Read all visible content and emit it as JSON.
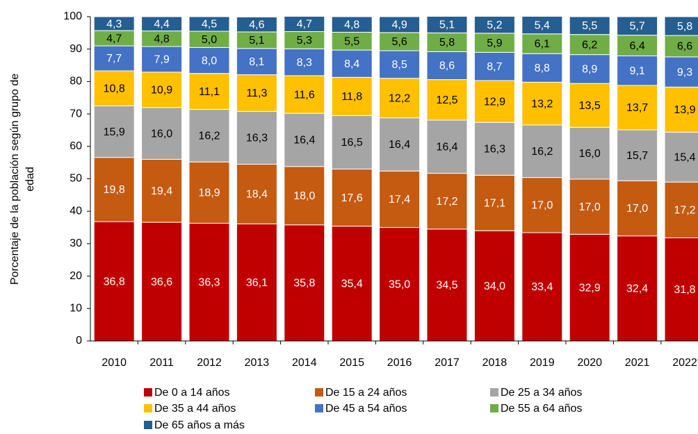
{
  "chart_data": {
    "type": "stacked_bar",
    "y_label": [
      "Porcentaje de la población según grupo de",
      "edad"
    ],
    "categories": [
      "2010",
      "2011",
      "2012",
      "2013",
      "2014",
      "2015",
      "2016",
      "2017",
      "2018",
      "2019",
      "2020",
      "2021",
      "2022"
    ],
    "ylim": [
      0,
      100
    ],
    "yticks": [
      0,
      10,
      20,
      30,
      40,
      50,
      60,
      70,
      80,
      90,
      100
    ],
    "grid": false,
    "series": [
      {
        "name": "De 0 a 14 años",
        "color": "#c00000",
        "label_color": "#ffffff",
        "values": [
          36.8,
          36.6,
          36.3,
          36.1,
          35.8,
          35.4,
          35.0,
          34.5,
          34.0,
          33.4,
          32.9,
          32.4,
          31.8
        ],
        "value_labels": [
          "36,8",
          "36,6",
          "36,3",
          "36,1",
          "35,8",
          "35,4",
          "35,0",
          "34,5",
          "34,0",
          "33,4",
          "32,9",
          "32,4",
          "31,8"
        ]
      },
      {
        "name": "De 15 a 24 años",
        "color": "#c55a11",
        "label_color": "#ffffff",
        "values": [
          19.8,
          19.4,
          18.9,
          18.4,
          18.0,
          17.6,
          17.4,
          17.2,
          17.1,
          17.0,
          17.0,
          17.0,
          17.2
        ],
        "value_labels": [
          "19,8",
          "19,4",
          "18,9",
          "18,4",
          "18,0",
          "17,6",
          "17,4",
          "17,2",
          "17,1",
          "17,0",
          "17,0",
          "17,0",
          "17,2"
        ]
      },
      {
        "name": "De 25 a 34 años",
        "color": "#a5a5a5",
        "label_color": "#000000",
        "values": [
          15.9,
          16.0,
          16.2,
          16.3,
          16.4,
          16.5,
          16.4,
          16.4,
          16.3,
          16.2,
          16.0,
          15.7,
          15.4
        ],
        "value_labels": [
          "15,9",
          "16,0",
          "16,2",
          "16,3",
          "16,4",
          "16,5",
          "16,4",
          "16,4",
          "16,3",
          "16,2",
          "16,0",
          "15,7",
          "15,4"
        ]
      },
      {
        "name": "De 35 a 44 años",
        "color": "#ffc000",
        "label_color": "#000000",
        "values": [
          10.8,
          10.9,
          11.1,
          11.3,
          11.6,
          11.8,
          12.2,
          12.5,
          12.9,
          13.2,
          13.5,
          13.7,
          13.9
        ],
        "value_labels": [
          "10,8",
          "10,9",
          "11,1",
          "11,3",
          "11,6",
          "11,8",
          "12,2",
          "12,5",
          "12,9",
          "13,2",
          "13,5",
          "13,7",
          "13,9"
        ]
      },
      {
        "name": "De 45 a 54 años",
        "color": "#4472c4",
        "label_color": "#ffffff",
        "values": [
          7.7,
          7.9,
          8.0,
          8.1,
          8.3,
          8.4,
          8.5,
          8.6,
          8.7,
          8.8,
          8.9,
          9.1,
          9.3
        ],
        "value_labels": [
          "7,7",
          "7,9",
          "8,0",
          "8,1",
          "8,3",
          "8,4",
          "8,5",
          "8,6",
          "8,7",
          "8,8",
          "8,9",
          "9,1",
          "9,3"
        ]
      },
      {
        "name": "De 55 a 64 años",
        "color": "#70ad47",
        "label_color": "#000000",
        "values": [
          4.7,
          4.8,
          5.0,
          5.1,
          5.3,
          5.5,
          5.6,
          5.8,
          5.9,
          6.1,
          6.2,
          6.4,
          6.6
        ],
        "value_labels": [
          "4,7",
          "4,8",
          "5,0",
          "5,1",
          "5,3",
          "5,5",
          "5,6",
          "5,8",
          "5,9",
          "6,1",
          "6,2",
          "6,4",
          "6,6"
        ]
      },
      {
        "name": "De 65 años a más",
        "color": "#255e91",
        "label_color": "#ffffff",
        "values": [
          4.3,
          4.4,
          4.5,
          4.6,
          4.7,
          4.8,
          4.9,
          5.1,
          5.2,
          5.4,
          5.5,
          5.7,
          5.8
        ],
        "value_labels": [
          "4,3",
          "4,4",
          "4,5",
          "4,6",
          "4,7",
          "4,8",
          "4,9",
          "5,1",
          "5,2",
          "5,4",
          "5,5",
          "5,7",
          "5,8"
        ]
      }
    ]
  }
}
